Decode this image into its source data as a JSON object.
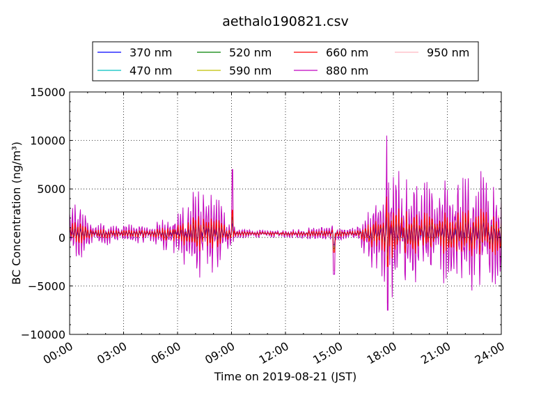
{
  "chart_data": {
    "type": "line",
    "title": "aethalo190821.csv",
    "xlabel": "Time on 2019-08-21 (JST)",
    "ylabel": "BC Concentration (ng/m³)",
    "xlim": [
      0,
      24
    ],
    "ylim": [
      -10000,
      15000
    ],
    "grid": true,
    "legend_position": "top",
    "x_tick_labels": [
      "00:00",
      "03:00",
      "06:00",
      "09:00",
      "12:00",
      "15:00",
      "18:00",
      "21:00",
      "24:00"
    ],
    "y_tick_labels": [
      "−10000",
      "−5000",
      "0",
      "5000",
      "10000",
      "15000"
    ],
    "series": [
      {
        "name": "370 nm",
        "color": "#0000ff"
      },
      {
        "name": "470 nm",
        "color": "#00bfbf"
      },
      {
        "name": "520 nm",
        "color": "#008000"
      },
      {
        "name": "590 nm",
        "color": "#bfbf00"
      },
      {
        "name": "660 nm",
        "color": "#ff0000"
      },
      {
        "name": "880 nm",
        "color": "#bf00bf"
      },
      {
        "name": "950 nm",
        "color": "#ffb6c1"
      }
    ],
    "envelope": {
      "hours": [
        0,
        0.5,
        1,
        2,
        3,
        4,
        5,
        5.5,
        6,
        6.5,
        7,
        7.5,
        8,
        8.5,
        9,
        9.5,
        10,
        11,
        12,
        13,
        14,
        14.5,
        15,
        15.5,
        16,
        16.5,
        17,
        17.5,
        18,
        18.5,
        19,
        19.5,
        20,
        20.5,
        21,
        21.5,
        22,
        22.5,
        23,
        23.5,
        24
      ],
      "amplitude_880nm": [
        3500,
        3000,
        1500,
        1200,
        1000,
        900,
        1200,
        2000,
        3000,
        3500,
        4500,
        4000,
        4000,
        3000,
        1000,
        500,
        400,
        400,
        400,
        500,
        800,
        1000,
        700,
        600,
        800,
        2500,
        4000,
        5000,
        7000,
        6000,
        5500,
        5000,
        5000,
        5000,
        5500,
        6000,
        6000,
        6000,
        6000,
        6000,
        6000
      ]
    },
    "spikes": [
      {
        "series": "880 nm",
        "x": 9.05,
        "y": 7600
      },
      {
        "series": "950 nm",
        "x": 9.05,
        "y": 7000
      },
      {
        "series": "880 nm",
        "x": 14.7,
        "y": -3800
      },
      {
        "series": "880 nm",
        "x": 17.65,
        "y": 10500
      },
      {
        "series": "880 nm",
        "x": 17.7,
        "y": -7500
      }
    ]
  }
}
